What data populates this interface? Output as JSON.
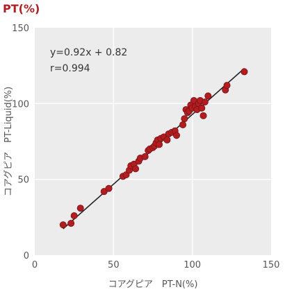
{
  "colors": {
    "plot_background": "#ececec",
    "gridline": "#ffffff",
    "point_fill": "#b11e22",
    "point_stroke": "#7a1012",
    "regression_line": "#222222",
    "title_color": "#b11e22"
  },
  "chart_data": {
    "type": "scatter",
    "title": "PT(%)",
    "xlabel": "コアグピア　PT-N(%)",
    "ylabel": "コアグピア　PT-Liquid(%)",
    "xlim": [
      0,
      150
    ],
    "ylim": [
      0,
      150
    ],
    "x_ticks": [
      0,
      50,
      100,
      150
    ],
    "y_ticks": [
      0,
      50,
      100,
      150
    ],
    "grid": true,
    "annotations": [
      "y=0.92x + 0.82",
      "r=0.994"
    ],
    "regression": {
      "slope": 0.92,
      "intercept": 0.82,
      "x_range": [
        18,
        133
      ]
    },
    "points": [
      [
        18,
        20
      ],
      [
        23,
        21
      ],
      [
        25,
        26
      ],
      [
        29,
        31
      ],
      [
        44,
        42
      ],
      [
        47,
        44
      ],
      [
        56,
        52
      ],
      [
        58,
        53
      ],
      [
        60,
        56
      ],
      [
        61,
        59
      ],
      [
        63,
        60
      ],
      [
        64,
        57
      ],
      [
        66,
        62
      ],
      [
        67,
        64
      ],
      [
        70,
        65
      ],
      [
        72,
        69
      ],
      [
        73,
        70
      ],
      [
        75,
        71
      ],
      [
        76,
        72
      ],
      [
        77,
        74
      ],
      [
        78,
        76
      ],
      [
        79,
        73
      ],
      [
        80,
        77
      ],
      [
        82,
        78
      ],
      [
        84,
        76
      ],
      [
        85,
        80
      ],
      [
        87,
        81
      ],
      [
        89,
        82
      ],
      [
        90,
        79
      ],
      [
        94,
        86
      ],
      [
        95,
        90
      ],
      [
        96,
        96
      ],
      [
        97,
        94
      ],
      [
        98,
        95
      ],
      [
        99,
        99
      ],
      [
        100,
        97
      ],
      [
        101,
        102
      ],
      [
        102,
        98
      ],
      [
        103,
        96
      ],
      [
        104,
        100
      ],
      [
        105,
        102
      ],
      [
        106,
        97
      ],
      [
        107,
        92
      ],
      [
        108,
        101
      ],
      [
        110,
        105
      ],
      [
        121,
        109
      ],
      [
        122,
        112
      ],
      [
        133,
        121
      ]
    ]
  }
}
